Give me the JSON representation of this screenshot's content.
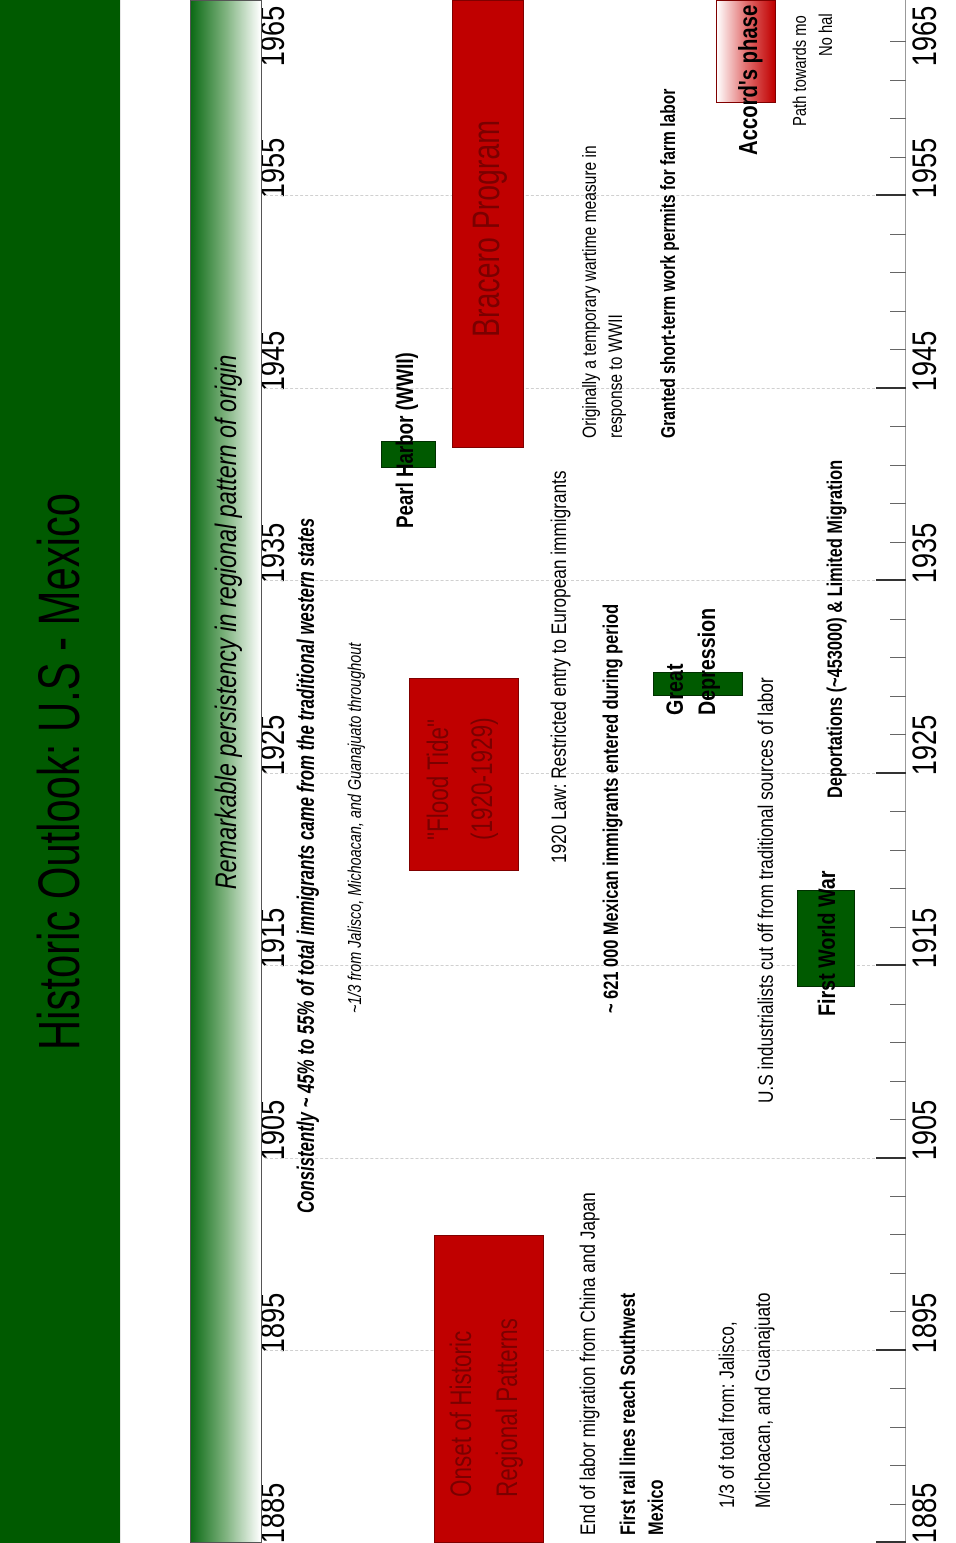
{
  "title": "Historic Outlook: U.S - Mexico",
  "persistence_band": "Remarkable persistency in regional pattern of origin",
  "years": [
    "1885",
    "1895",
    "1905",
    "1915",
    "1925",
    "1935",
    "1945",
    "1955",
    "1965"
  ],
  "notes": {
    "consistently": "Consistently ~ 45% to 55% of total immigrants came from the traditional western states",
    "one_third_throughout": "~1/3 from Jalisco, Michoacan, and Guanajuato throughout",
    "pearl_harbor": "Pearl Harbor (WWII)",
    "law_1920": "1920 Law: Restricted entry to European immigrants",
    "immigrants_621000": "~ 621 000 Mexican immigrants entered during period",
    "originally_line1": "Originally a temporary wartime measure in",
    "originally_line2": "response to WWII",
    "granted": "Granted short-term work permits for farm labor",
    "industrialists": "U.S industrialists cut off from traditional sources of labor",
    "deportations": "Deportations (~453000) & Limited Migration",
    "path_line1": "Path towards mo",
    "path_line2": "No hal",
    "end_labor": "End of labor migration from China and Japan",
    "rail_line1": "First rail lines reach Southwest",
    "rail_line2": "Mexico",
    "third_line1": "1/3  of total from: Jalisco,",
    "third_line2": "Michoacan, and Guanajuato"
  },
  "boxes": {
    "onset_line1": "Onset of Historic",
    "onset_line2": "Regional  Patterns",
    "flood_line1": "\"Flood Tide\"",
    "flood_line2": "(1920-1929)",
    "bracero": "Bracero Program",
    "great_line1": "Great",
    "great_line2": "Depression",
    "first_world_war": "First World War",
    "accords_phase": "Accord's phase"
  },
  "colors": {
    "title_band": "#005a00",
    "event_red": "#c00000",
    "event_green": "#005a00"
  }
}
